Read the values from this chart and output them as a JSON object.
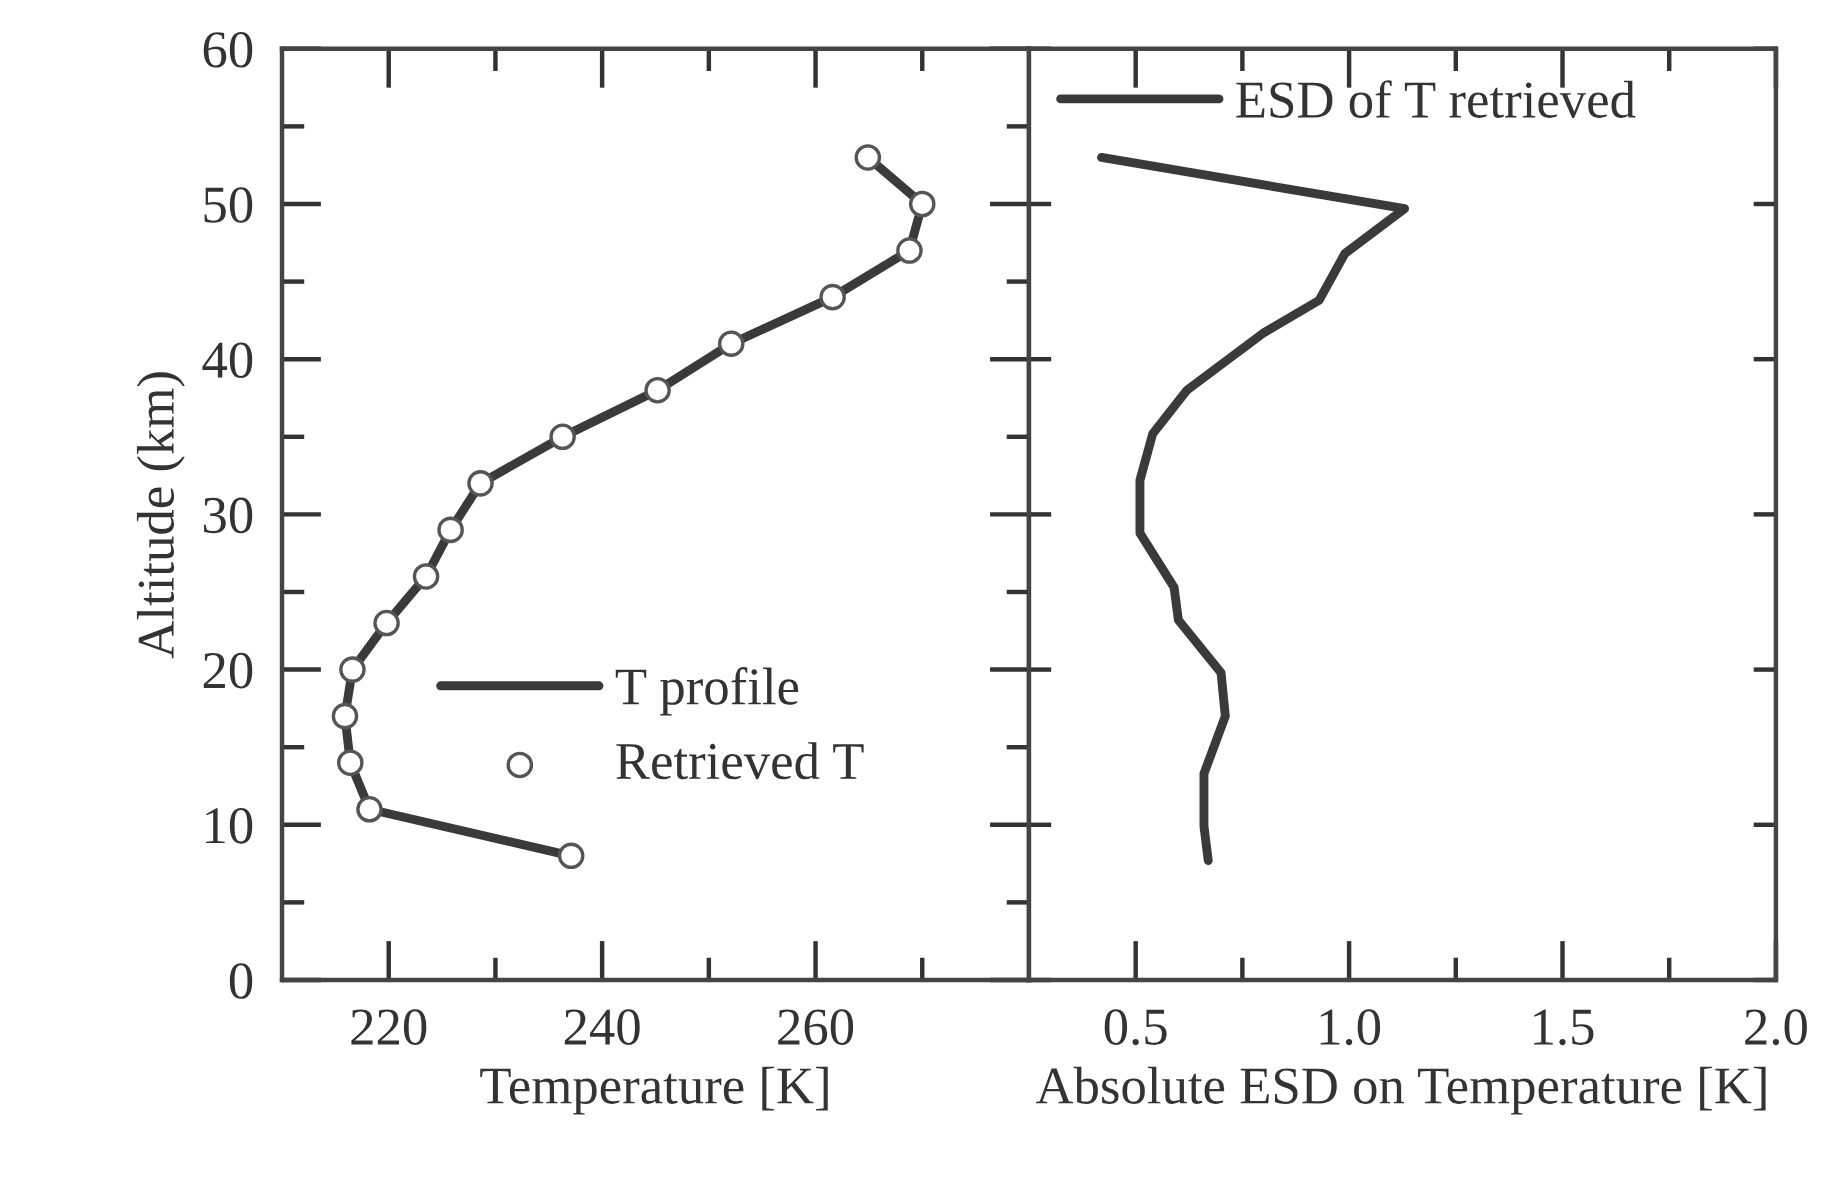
{
  "chart_data": [
    {
      "type": "line",
      "xlabel": "Temperature [K]",
      "ylabel": "Altitude (km)",
      "xlim": [
        210,
        280
      ],
      "xticks": [
        {
          "value": 220,
          "label": "220"
        },
        {
          "value": 230,
          "label": null
        },
        {
          "value": 240,
          "label": "240"
        },
        {
          "value": 250,
          "label": null
        },
        {
          "value": 260,
          "label": "260"
        },
        {
          "value": 270,
          "label": null
        }
      ],
      "ylim": [
        0,
        60
      ],
      "yticks": [
        0,
        10,
        20,
        30,
        40,
        50,
        60
      ],
      "grid": false,
      "legend": "left",
      "series": [
        {
          "name": "T profile",
          "color": "#3a3a3a",
          "line_style": "solid",
          "x": [
            264.9,
            270.0,
            268.8,
            261.6,
            252.1,
            245.2,
            236.3,
            228.6,
            225.8,
            223.5,
            219.8,
            216.6,
            215.9,
            216.4,
            218.2,
            237.1
          ],
          "values": [
            53,
            50,
            47,
            44,
            41,
            38,
            35,
            32,
            29,
            26,
            23,
            20,
            17,
            14,
            11,
            8
          ]
        },
        {
          "name": "Retrieved T",
          "type": "scatter",
          "color": "#555555",
          "marker": "circle",
          "x": [
            264.9,
            270.0,
            268.8,
            261.6,
            252.1,
            245.2,
            236.3,
            228.6,
            225.8,
            223.5,
            219.8,
            216.6,
            215.9,
            216.4,
            218.2,
            237.1
          ],
          "values": [
            53,
            50,
            47,
            44,
            41,
            38,
            35,
            32,
            29,
            26,
            23,
            20,
            17,
            14,
            11,
            8
          ]
        }
      ]
    },
    {
      "type": "line",
      "xlabel": "Absolute ESD on Temperature [K]",
      "xlim": [
        0.25,
        2.0
      ],
      "xticks": [
        {
          "value": 0.5,
          "label": "0.5"
        },
        {
          "value": 0.75,
          "label": null
        },
        {
          "value": 1.0,
          "label": "1.0"
        },
        {
          "value": 1.25,
          "label": null
        },
        {
          "value": 1.5,
          "label": "1.5"
        },
        {
          "value": 1.75,
          "label": null
        },
        {
          "value": 2.0,
          "label": "2.0"
        }
      ],
      "ylim": [
        0,
        60
      ],
      "yticks": [
        {
          "value": 0,
          "label": null
        },
        {
          "value": 10,
          "label": null
        },
        {
          "value": 20,
          "label": null
        },
        {
          "value": 30,
          "label": null
        },
        {
          "value": 40,
          "label": null
        },
        {
          "value": 50,
          "label": null
        },
        {
          "value": 60,
          "label": null
        }
      ],
      "tick_labels": "x",
      "grid": false,
      "legend": "top left",
      "series": [
        {
          "name": "ESD of T retrieved",
          "color": "#3a3a3a",
          "line_style": "solid",
          "x": [
            0.42,
            1.13,
            0.99,
            0.93,
            0.8,
            0.62,
            0.54,
            0.51,
            0.51,
            0.59,
            0.6,
            0.7,
            0.71,
            0.66,
            0.66,
            0.67
          ],
          "values": [
            53,
            49.7,
            46.8,
            43.8,
            41.7,
            38,
            35.2,
            32.2,
            28.8,
            25.3,
            23.2,
            19.8,
            17,
            13.3,
            9.9,
            7.7
          ]
        }
      ]
    }
  ]
}
